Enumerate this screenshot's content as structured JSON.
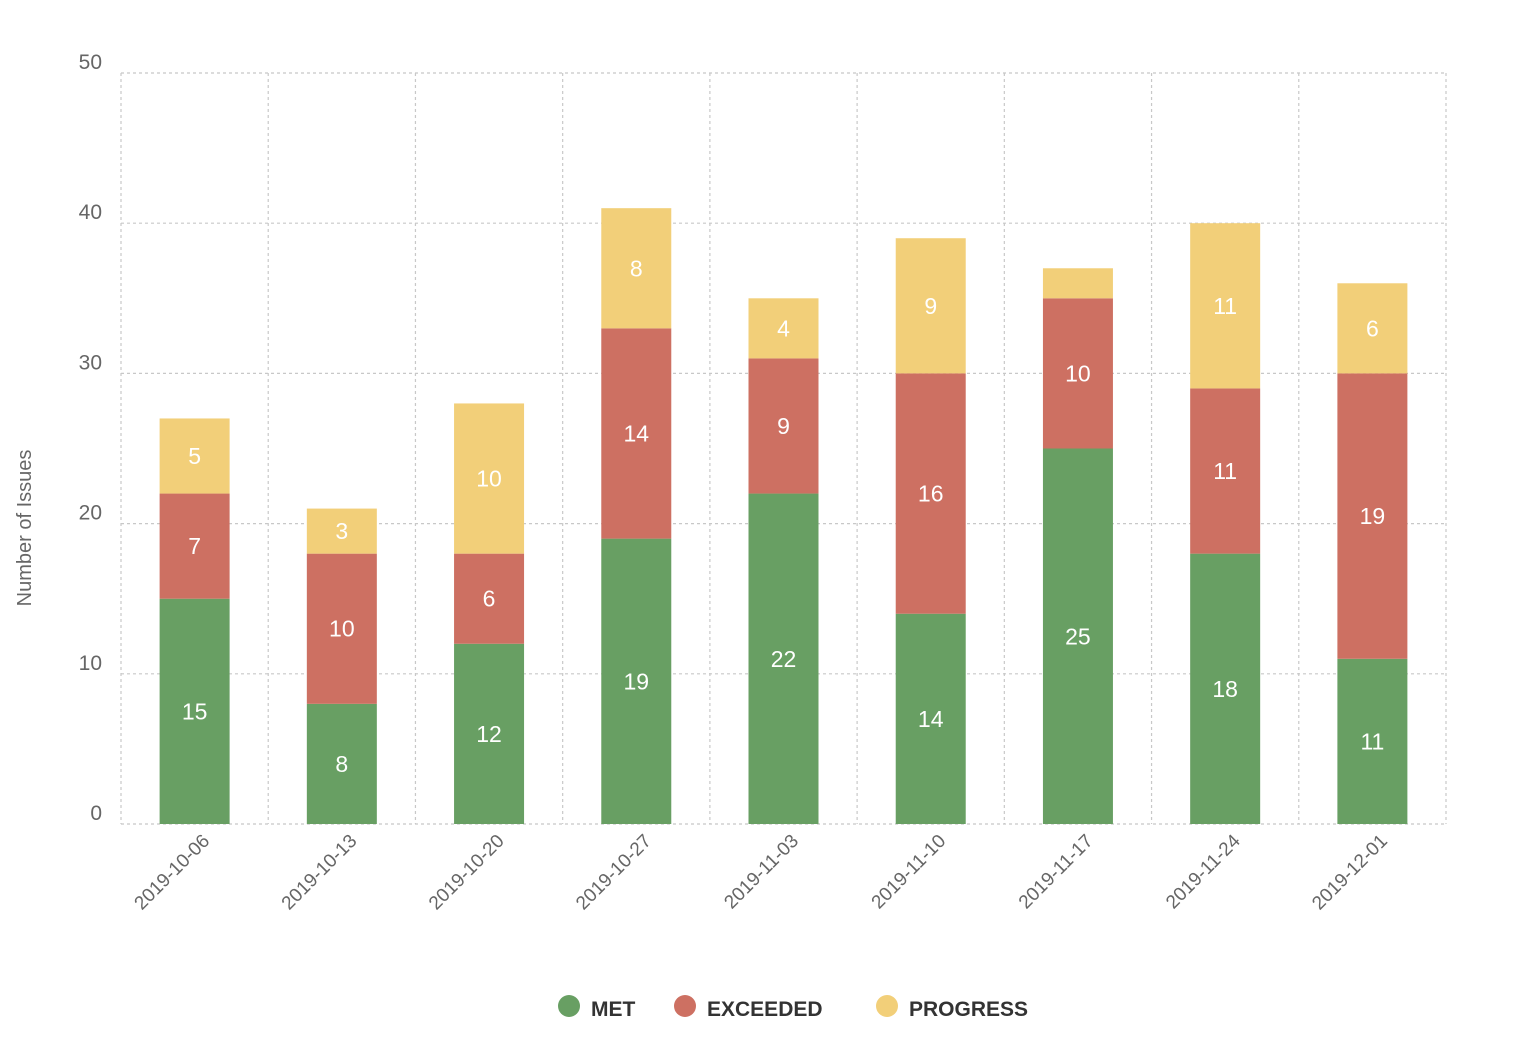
{
  "chart_data": {
    "type": "bar",
    "stacked": true,
    "categories": [
      "2019-10-06",
      "2019-10-13",
      "2019-10-20",
      "2019-10-27",
      "2019-11-03",
      "2019-11-10",
      "2019-11-17",
      "2019-11-24",
      "2019-12-01"
    ],
    "series": [
      {
        "name": "MET",
        "color": "#689f63",
        "values": [
          15,
          8,
          12,
          19,
          22,
          14,
          25,
          18,
          11
        ],
        "labels": [
          "15",
          "8",
          "12",
          "19",
          "22",
          "14",
          "25",
          "18",
          "11"
        ]
      },
      {
        "name": "EXCEEDED",
        "color": "#cd7062",
        "values": [
          7,
          10,
          6,
          14,
          9,
          16,
          10,
          11,
          19
        ],
        "labels": [
          "7",
          "10",
          "6",
          "14",
          "9",
          "16",
          "10",
          "11",
          "19"
        ]
      },
      {
        "name": "PROGRESS",
        "color": "#f2cf79",
        "values": [
          5,
          3,
          10,
          8,
          4,
          9,
          2,
          11,
          6
        ],
        "labels": [
          "5",
          "3",
          "10",
          "8",
          "4",
          "9",
          "",
          "11",
          "6"
        ]
      }
    ],
    "title": "",
    "xlabel": "",
    "ylabel": "Number of Issues",
    "ylim": [
      0,
      50
    ],
    "yticks": [
      0,
      10,
      20,
      30,
      40,
      50
    ],
    "ytick_labels": [
      "0",
      "10",
      "20",
      "30",
      "40",
      "50"
    ],
    "grid": true,
    "legend": "bottom-center"
  }
}
